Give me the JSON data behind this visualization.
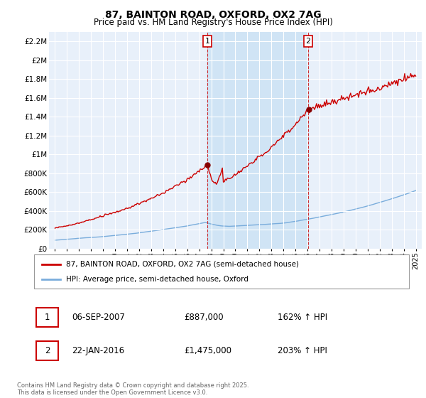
{
  "title": "87, BAINTON ROAD, OXFORD, OX2 7AG",
  "subtitle": "Price paid vs. HM Land Registry's House Price Index (HPI)",
  "hpi_label": "HPI: Average price, semi-detached house, Oxford",
  "price_label": "87, BAINTON ROAD, OXFORD, OX2 7AG (semi-detached house)",
  "price_color": "#cc0000",
  "hpi_color": "#7aaddc",
  "background_color": "#e8f0fa",
  "highlight_color": "#d0e4f5",
  "annotation1": {
    "label": "1",
    "date_str": "06-SEP-2007",
    "price_str": "£887,000",
    "pct_str": "162% ↑ HPI",
    "x_year": 2007.68
  },
  "annotation2": {
    "label": "2",
    "date_str": "22-JAN-2016",
    "price_str": "£1,475,000",
    "pct_str": "203% ↑ HPI",
    "x_year": 2016.05
  },
  "footer": "Contains HM Land Registry data © Crown copyright and database right 2025.\nThis data is licensed under the Open Government Licence v3.0.",
  "ylim": [
    0,
    2300000
  ],
  "yticks": [
    0,
    200000,
    400000,
    600000,
    800000,
    1000000,
    1200000,
    1400000,
    1600000,
    1800000,
    2000000,
    2200000
  ],
  "ytick_labels": [
    "£0",
    "£200K",
    "£400K",
    "£600K",
    "£800K",
    "£1M",
    "£1.2M",
    "£1.4M",
    "£1.6M",
    "£1.8M",
    "£2M",
    "£2.2M"
  ],
  "xlim": [
    1994.5,
    2025.5
  ],
  "xticks": [
    1995,
    1996,
    1997,
    1998,
    1999,
    2000,
    2001,
    2002,
    2003,
    2004,
    2005,
    2006,
    2007,
    2008,
    2009,
    2010,
    2011,
    2012,
    2013,
    2014,
    2015,
    2016,
    2017,
    2018,
    2019,
    2020,
    2021,
    2022,
    2023,
    2024,
    2025
  ]
}
